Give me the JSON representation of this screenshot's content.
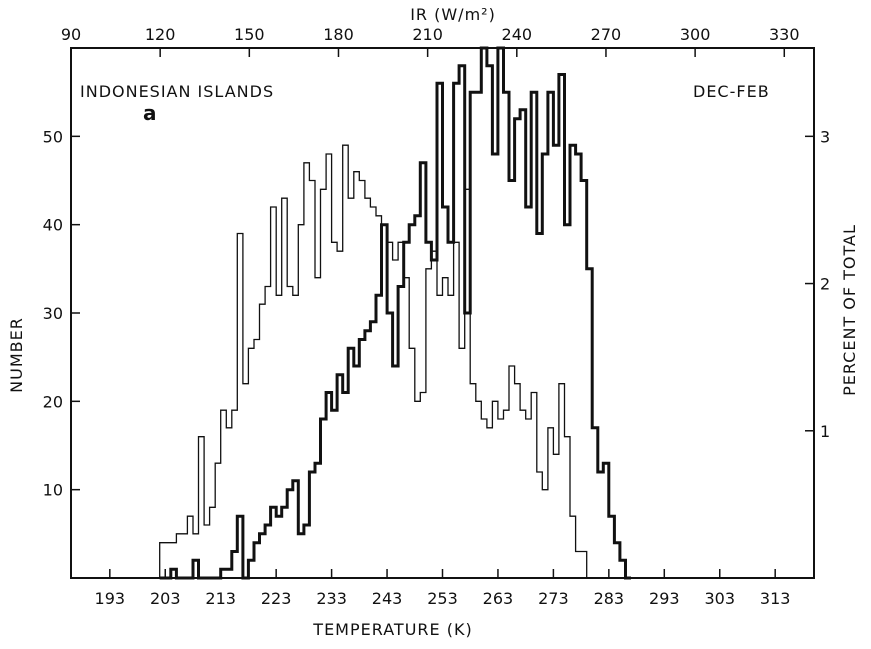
{
  "chart_data": {
    "type": "step",
    "annotations": {
      "region": "INDONESIAN ISLANDS",
      "panel": "a",
      "season": "DEC-FEB"
    },
    "x_bottom": {
      "label": "TEMPERATURE (K)",
      "range": [
        186,
        320
      ],
      "ticks": [
        193,
        203,
        213,
        223,
        233,
        243,
        253,
        263,
        273,
        283,
        293,
        303,
        313
      ]
    },
    "x_top": {
      "label": "IR (W/m²)",
      "range": [
        90,
        340
      ],
      "ticks": [
        90,
        120,
        150,
        180,
        210,
        240,
        270,
        300,
        330
      ]
    },
    "y_left": {
      "label": "NUMBER",
      "range": [
        0,
        60
      ],
      "ticks": [
        10,
        20,
        30,
        40,
        50
      ]
    },
    "y_right": {
      "label": "PERCENT OF TOTAL",
      "range": [
        0,
        3.6
      ],
      "ticks": [
        1,
        2,
        3
      ]
    },
    "series": [
      {
        "style": "thin",
        "bin_width": 1,
        "x_start": 202,
        "values": [
          4,
          4,
          4,
          5,
          5,
          7,
          5,
          16,
          6,
          8,
          13,
          19,
          17,
          19,
          39,
          22,
          26,
          27,
          31,
          33,
          42,
          32,
          43,
          33,
          32,
          40,
          47,
          45,
          34,
          44,
          48,
          38,
          37,
          49,
          43,
          46,
          45,
          43,
          42,
          41,
          40,
          38,
          36,
          38,
          34,
          26,
          20,
          21,
          35,
          37,
          32,
          34,
          32,
          38,
          26,
          44,
          22,
          20,
          18,
          17,
          20,
          18,
          19,
          24,
          22,
          19,
          18,
          21,
          12,
          10,
          17,
          14,
          22,
          16,
          7,
          3,
          3,
          0
        ]
      },
      {
        "style": "thick",
        "bin_width": 1,
        "x_start": 202,
        "values": [
          0,
          0,
          1,
          0,
          0,
          0,
          2,
          0,
          0,
          0,
          0,
          1,
          1,
          3,
          7,
          0,
          2,
          4,
          5,
          6,
          8,
          7,
          8,
          10,
          11,
          5,
          6,
          12,
          13,
          18,
          21,
          19,
          23,
          21,
          26,
          24,
          27,
          28,
          29,
          32,
          40,
          30,
          24,
          33,
          38,
          40,
          41,
          47,
          38,
          36,
          56,
          42,
          38,
          56,
          58,
          30,
          55,
          55,
          60,
          58,
          48,
          60,
          55,
          45,
          52,
          53,
          42,
          55,
          39,
          48,
          55,
          49,
          57,
          40,
          49,
          48,
          45,
          35,
          17,
          12,
          13,
          7,
          4,
          2,
          0
        ]
      }
    ]
  }
}
